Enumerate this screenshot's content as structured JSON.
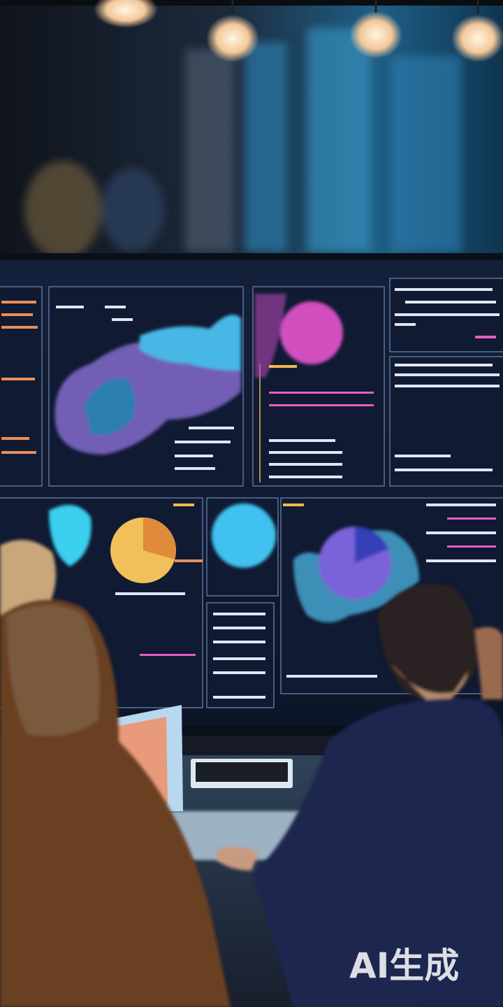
{
  "watermark": "AI生成"
}
